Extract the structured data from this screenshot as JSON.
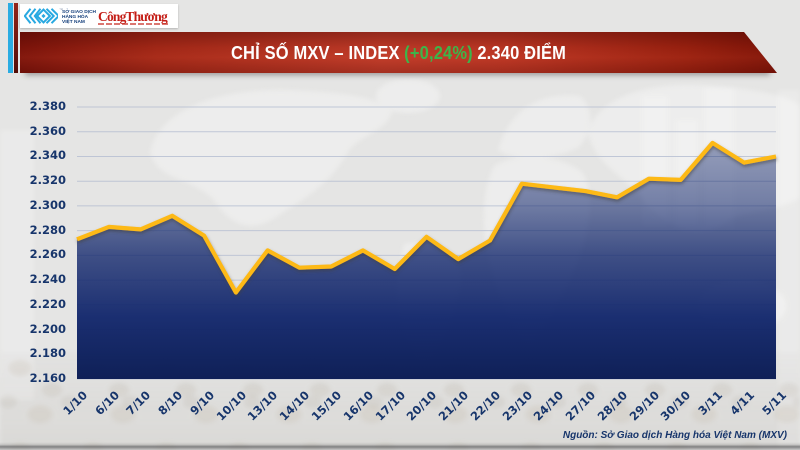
{
  "brand": {
    "exchange_name_lines": [
      "SỞ GIAO DỊCH",
      "HÀNG HÓA",
      "VIỆT NAM"
    ],
    "trademark": "™",
    "newspaper_name": "Công Thương",
    "logo_color": "#2aa9e0",
    "newspaper_color": "#cf1410"
  },
  "header": {
    "title_main": "CHỈ SỐ MXV – INDEX",
    "title_change": "(+0,24%)",
    "title_value": "2.340 ĐIỂM",
    "change_color": "#3db54a",
    "banner_color": "#b02d1a"
  },
  "footer": {
    "source": "Nguồn: Sở Giao dịch Hàng hóa Việt Nam (MXV)"
  },
  "chart_data": {
    "type": "area",
    "title": "CHỈ SỐ MXV – INDEX (+0,24%) 2.340 ĐIỂM",
    "categories": [
      "1/10",
      "6/10",
      "7/10",
      "8/10",
      "9/10",
      "10/10",
      "13/10",
      "14/10",
      "15/10",
      "16/10",
      "17/10",
      "20/10",
      "21/10",
      "22/10",
      "23/10",
      "24/10",
      "27/10",
      "28/10",
      "29/10",
      "30/10",
      "3/11",
      "4/11",
      "5/11"
    ],
    "values": [
      2.273,
      2.283,
      2.281,
      2.292,
      2.276,
      2.23,
      2.264,
      2.25,
      2.251,
      2.264,
      2.249,
      2.275,
      2.257,
      2.272,
      2.318,
      2.315,
      2.312,
      2.307,
      2.322,
      2.321,
      2.351,
      2.335,
      2.34
    ],
    "xlabel": "",
    "ylabel": "",
    "ylim": [
      2.16,
      2.38
    ],
    "ytick_step": 0.02,
    "ytick_labels": [
      "2.380",
      "2.360",
      "2.340",
      "2.320",
      "2.300",
      "2.280",
      "2.260",
      "2.240",
      "2.220",
      "2.200",
      "2.180",
      "2.160"
    ],
    "grid": "horizontal",
    "legend": "none",
    "line_color": "#fdb913",
    "area_top_color": "#10256b",
    "area_bottom_color": "#0f2057",
    "grid_color": "#b7c0d2",
    "axis_label_color": "#17356b"
  }
}
